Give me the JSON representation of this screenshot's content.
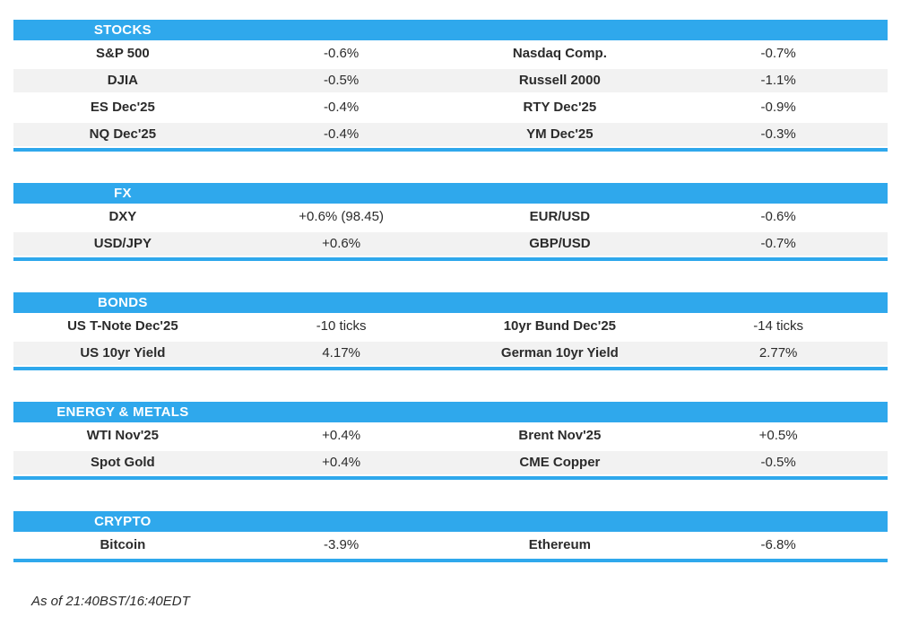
{
  "colors": {
    "accent": "#2fa8ec",
    "row_alt": "#f2f2f2",
    "text": "#2b2b2b",
    "header_text": "#ffffff"
  },
  "sections": [
    {
      "title": "STOCKS",
      "rows": [
        {
          "cells": [
            "S&P 500",
            "-0.6%",
            "Nasdaq Comp.",
            "-0.7%"
          ]
        },
        {
          "cells": [
            "DJIA",
            "-0.5%",
            "Russell 2000",
            "-1.1%"
          ]
        },
        {
          "cells": [
            "ES Dec'25",
            "-0.4%",
            "RTY Dec'25",
            "-0.9%"
          ]
        },
        {
          "cells": [
            "NQ Dec'25",
            "-0.4%",
            "YM Dec'25",
            "-0.3%"
          ]
        }
      ]
    },
    {
      "title": "FX",
      "rows": [
        {
          "cells": [
            "DXY",
            "+0.6% (98.45)",
            "EUR/USD",
            "-0.6%"
          ]
        },
        {
          "cells": [
            "USD/JPY",
            "+0.6%",
            "GBP/USD",
            "-0.7%"
          ]
        }
      ]
    },
    {
      "title": "BONDS",
      "rows": [
        {
          "cells": [
            "US T-Note Dec'25",
            "-10 ticks",
            "10yr Bund Dec'25",
            "-14 ticks"
          ]
        },
        {
          "cells": [
            "US 10yr Yield",
            "4.17%",
            "German 10yr Yield",
            "2.77%"
          ]
        }
      ]
    },
    {
      "title": "ENERGY & METALS",
      "rows": [
        {
          "cells": [
            "WTI Nov'25",
            "+0.4%",
            "Brent Nov'25",
            "+0.5%"
          ]
        },
        {
          "cells": [
            "Spot Gold",
            "+0.4%",
            "CME Copper",
            "-0.5%"
          ]
        }
      ]
    },
    {
      "title": "CRYPTO",
      "rows": [
        {
          "cells": [
            "Bitcoin",
            "-3.9%",
            "Ethereum",
            "-6.8%"
          ]
        }
      ]
    }
  ],
  "footer": {
    "as_of": "As of 21:40BST/16:40EDT"
  }
}
